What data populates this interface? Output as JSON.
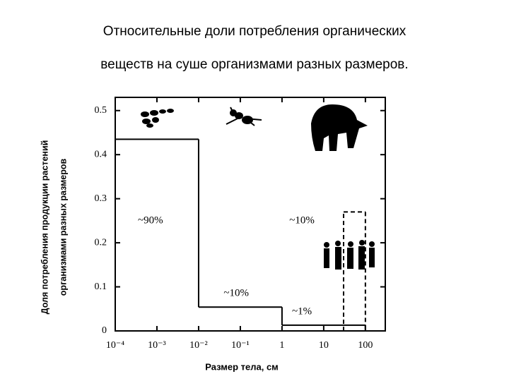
{
  "title_lines": [
    "Относительные доли потребления органических",
    "веществ на суше организмами разных размеров."
  ],
  "chart_data": {
    "type": "step",
    "ylabel_lines": [
      "Доля потребления продукции растений",
      "организмами разных размеров"
    ],
    "xlabel": "Размер тела, см",
    "xscale": "log",
    "xlim": [
      0.0001,
      300
    ],
    "ylim": [
      0,
      0.53
    ],
    "xticks": [
      {
        "value": 0.0001,
        "label": "10⁻⁴"
      },
      {
        "value": 0.001,
        "label": "10⁻³"
      },
      {
        "value": 0.01,
        "label": "10⁻²"
      },
      {
        "value": 0.1,
        "label": "10⁻¹"
      },
      1,
      10,
      100
    ],
    "yticks": [
      0,
      0.1,
      0.2,
      0.3,
      0.4,
      0.5
    ],
    "series": [
      {
        "bins": [
          0.0001,
          0.01,
          1,
          100
        ],
        "values": [
          0.435,
          0.054,
          0.013
        ],
        "color": "#000000",
        "dash": false
      },
      {
        "bins": [
          30,
          100
        ],
        "values": [
          0.27
        ],
        "color": "#000000",
        "dash": true
      }
    ],
    "annotations": [
      {
        "text": "~90%",
        "x": 0.0007,
        "y": 0.25
      },
      {
        "text": "~10%",
        "x": 0.08,
        "y": 0.085
      },
      {
        "text": "~1%",
        "x": 3,
        "y": 0.043
      },
      {
        "text": "~10%",
        "x": 3,
        "y": 0.25
      }
    ]
  }
}
